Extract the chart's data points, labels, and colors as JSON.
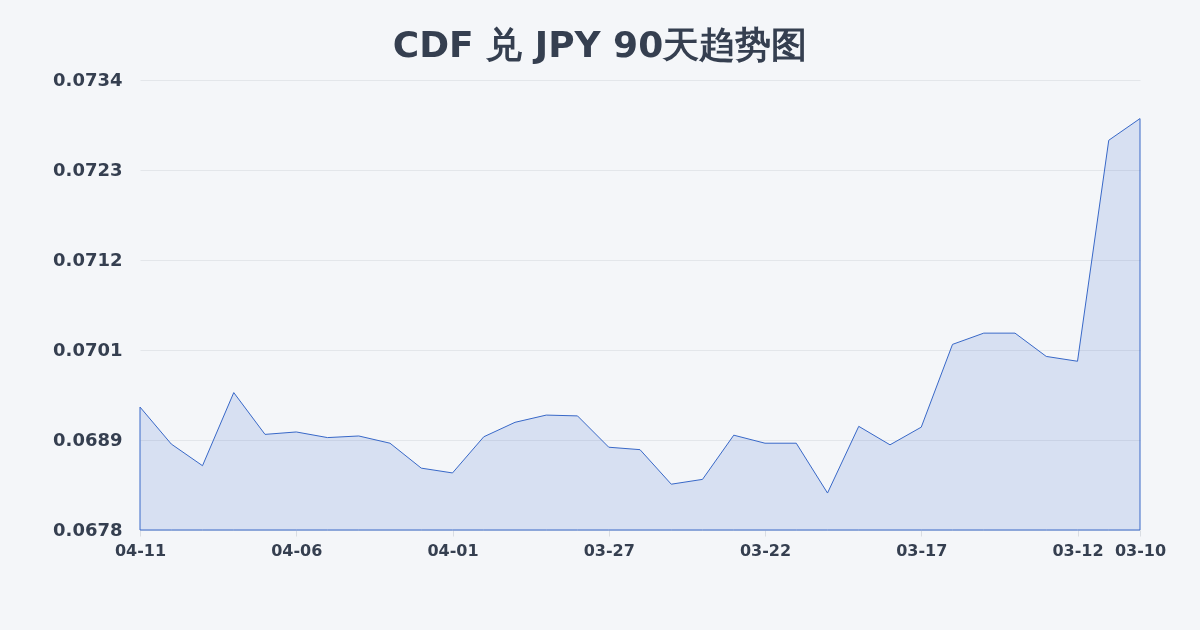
{
  "chart_data": {
    "type": "area",
    "title": "CDF 兑 JPY 90天趋势图",
    "categories": [
      "04-11",
      null,
      null,
      null,
      null,
      "04-06",
      null,
      null,
      null,
      null,
      "04-01",
      null,
      null,
      null,
      null,
      "03-27",
      null,
      null,
      null,
      null,
      "03-22",
      null,
      null,
      null,
      null,
      "03-17",
      null,
      null,
      null,
      null,
      "03-12",
      null,
      "03-10"
    ],
    "color": "#3868c8",
    "values": [
      0.06935,
      0.06889,
      0.06862,
      0.06953,
      0.06901,
      0.06904,
      0.06897,
      0.06899,
      0.0689,
      0.06859,
      0.06853,
      0.06898,
      0.06916,
      0.06925,
      0.06924,
      0.06885,
      0.06882,
      0.06839,
      0.06845,
      0.069,
      0.0689,
      0.0689,
      0.06828,
      0.06911,
      0.06888,
      0.0691,
      0.07013,
      0.07027,
      0.07027,
      0.06998,
      0.06992,
      0.07267,
      0.07294
    ],
    "ylim": [
      0.06782,
      0.07342
    ],
    "yticks": [
      {
        "value": 0.06782,
        "label": "0.0678"
      },
      {
        "value": 0.06894,
        "label": "0.0689"
      },
      {
        "value": 0.07006,
        "label": "0.0701"
      },
      {
        "value": 0.07118,
        "label": "0.0712"
      },
      {
        "value": 0.0723,
        "label": "0.0723"
      },
      {
        "value": 0.07342,
        "label": "0.0734"
      }
    ],
    "grid": "y"
  }
}
